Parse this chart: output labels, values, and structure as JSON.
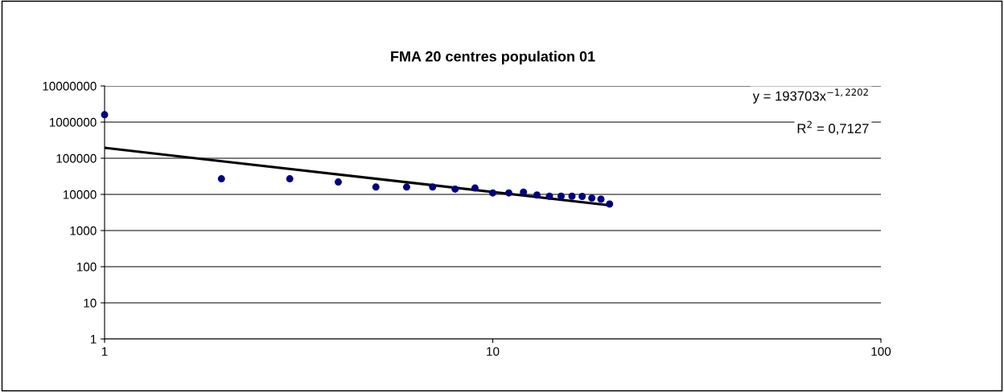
{
  "chart_data": {
    "type": "scatter",
    "title": "FMA 20 centres population 01",
    "log": "xy",
    "xlim": [
      1,
      100
    ],
    "xticks": [
      1,
      10,
      100
    ],
    "ylim": [
      1,
      10000000
    ],
    "yticks": [
      1,
      10,
      100,
      1000,
      10000,
      100000,
      1000000,
      10000000
    ],
    "grid": "y",
    "legend": false,
    "series": [
      {
        "type": "scatter",
        "marker": "circle",
        "color": "#000080",
        "x": [
          1,
          2,
          3,
          4,
          5,
          6,
          7,
          8,
          9,
          10,
          11,
          12,
          13,
          14,
          15,
          16,
          17,
          18,
          19,
          20
        ],
        "values": [
          1600000,
          27000,
          27000,
          22000,
          16000,
          16000,
          16000,
          14000,
          15000,
          11000,
          11000,
          11500,
          9600,
          8900,
          8900,
          8900,
          8800,
          7900,
          7350,
          5400
        ]
      },
      {
        "type": "line",
        "color": "#000000",
        "x": [
          1,
          20
        ],
        "values": [
          193700,
          5000
        ]
      }
    ],
    "annotations": [
      "y = 193703x$^{−1,2202}$",
      "R$^{2}$ = 0,7127"
    ]
  }
}
